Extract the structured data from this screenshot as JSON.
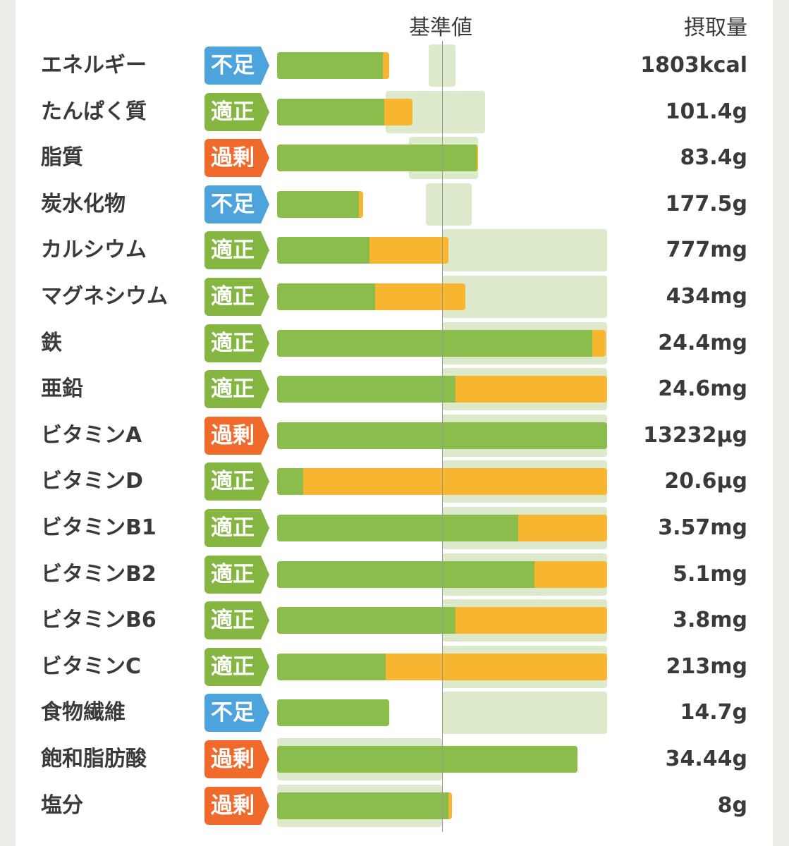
{
  "header": {
    "reference_label": "基準値",
    "intake_label": "摂取量"
  },
  "status_labels": {
    "low": "不足",
    "ok": "適正",
    "over": "過剰"
  },
  "colors": {
    "low": "#4da3dc",
    "ok": "#86b642",
    "over": "#f06a2c",
    "bar_green": "#8bbd4c",
    "bar_orange": "#f8b630",
    "range_band": "#dde9cb"
  },
  "nutrients": [
    {
      "name": "エネルギー",
      "status": "low",
      "status_label": "不足",
      "value": "1803kcal",
      "bar_fraction": 0.34,
      "green_share": 0.94,
      "range": [
        0.46,
        0.54
      ]
    },
    {
      "name": "たんぱく質",
      "status": "ok",
      "status_label": "適正",
      "value": "101.4g",
      "bar_fraction": 0.41,
      "green_share": 0.79,
      "range": [
        0.33,
        0.63
      ]
    },
    {
      "name": "脂質",
      "status": "over",
      "status_label": "過剰",
      "value": "83.4g",
      "bar_fraction": 0.61,
      "green_share": 0.99,
      "range": [
        0.4,
        0.61
      ]
    },
    {
      "name": "炭水化物",
      "status": "low",
      "status_label": "不足",
      "value": "177.5g",
      "bar_fraction": 0.26,
      "green_share": 0.95,
      "range": [
        0.45,
        0.59
      ]
    },
    {
      "name": "カルシウム",
      "status": "ok",
      "status_label": "適正",
      "value": "777mg",
      "bar_fraction": 0.52,
      "green_share": 0.54,
      "range": [
        0.5,
        1.0
      ]
    },
    {
      "name": "マグネシウム",
      "status": "ok",
      "status_label": "適正",
      "value": "434mg",
      "bar_fraction": 0.57,
      "green_share": 0.52,
      "range": [
        0.5,
        1.0
      ]
    },
    {
      "name": "鉄",
      "status": "ok",
      "status_label": "適正",
      "value": "24.4mg",
      "bar_fraction": 0.995,
      "green_share": 0.96,
      "range": [
        0.5,
        1.0
      ]
    },
    {
      "name": "亜鉛",
      "status": "ok",
      "status_label": "適正",
      "value": "24.6mg",
      "bar_fraction": 1.0,
      "green_share": 0.54,
      "range": [
        0.5,
        1.0
      ]
    },
    {
      "name": "ビタミンA",
      "status": "over",
      "status_label": "過剰",
      "value": "13232μg",
      "bar_fraction": 1.0,
      "green_share": 1.0,
      "range": [
        0.5,
        1.0
      ]
    },
    {
      "name": "ビタミンD",
      "status": "ok",
      "status_label": "適正",
      "value": "20.6μg",
      "bar_fraction": 1.0,
      "green_share": 0.08,
      "range": [
        0.5,
        1.0
      ]
    },
    {
      "name": "ビタミンB1",
      "status": "ok",
      "status_label": "適正",
      "value": "3.57mg",
      "bar_fraction": 1.0,
      "green_share": 0.73,
      "range": [
        0.5,
        1.0
      ]
    },
    {
      "name": "ビタミンB2",
      "status": "ok",
      "status_label": "適正",
      "value": "5.1mg",
      "bar_fraction": 1.0,
      "green_share": 0.78,
      "range": [
        0.5,
        1.0
      ]
    },
    {
      "name": "ビタミンB6",
      "status": "ok",
      "status_label": "適正",
      "value": "3.8mg",
      "bar_fraction": 1.0,
      "green_share": 0.54,
      "range": [
        0.5,
        1.0
      ]
    },
    {
      "name": "ビタミンC",
      "status": "ok",
      "status_label": "適正",
      "value": "213mg",
      "bar_fraction": 1.0,
      "green_share": 0.33,
      "range": [
        0.5,
        1.0
      ]
    },
    {
      "name": "食物繊維",
      "status": "low",
      "status_label": "不足",
      "value": "14.7g",
      "bar_fraction": 0.34,
      "green_share": 1.0,
      "range": [
        0.5,
        1.0
      ]
    },
    {
      "name": "飽和脂肪酸",
      "status": "over",
      "status_label": "過剰",
      "value": "34.44g",
      "bar_fraction": 0.91,
      "green_share": 1.0,
      "range": [
        0.0,
        0.5
      ]
    },
    {
      "name": "塩分",
      "status": "over",
      "status_label": "過剰",
      "value": "8g",
      "bar_fraction": 0.53,
      "green_share": 0.98,
      "range": [
        0.0,
        0.5
      ]
    }
  ]
}
